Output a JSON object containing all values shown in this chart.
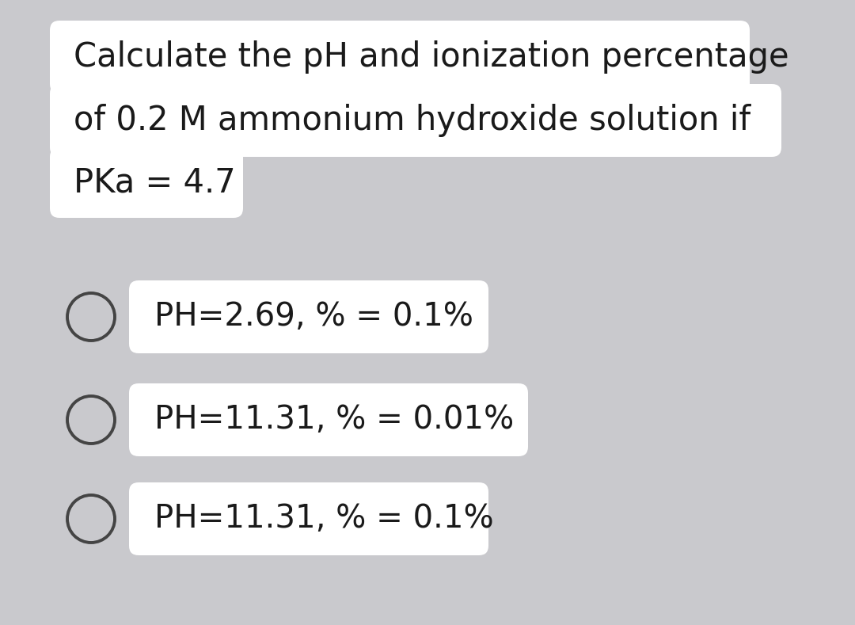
{
  "background_color": "#c9c9cd",
  "box_color": "#ffffff",
  "text_color": "#1a1a1a",
  "question_lines": [
    "Calculate the pH and ionization percentage",
    "of 0.2 M ammonium hydroxide solution if",
    "PKa = 4.7"
  ],
  "options": [
    "PH=2.69, % = 0.1%",
    "PH=11.31, % = 0.01%",
    "PH=11.31, % = 0.1%"
  ],
  "question_fontsize": 30,
  "option_fontsize": 29,
  "circle_color": "#444444",
  "circle_linewidth": 2.8
}
